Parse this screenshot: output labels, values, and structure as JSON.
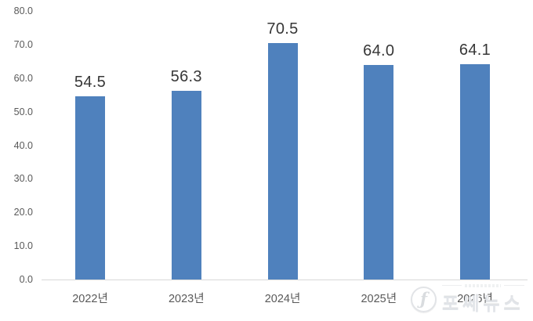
{
  "chart_data": {
    "type": "bar",
    "categories": [
      "2022년",
      "2023년",
      "2024년",
      "2025년",
      "2026년"
    ],
    "values": [
      54.5,
      56.3,
      70.5,
      64.0,
      64.1
    ],
    "value_labels": [
      "54.5",
      "56.3",
      "70.5",
      "64.0",
      "64.1"
    ],
    "title": "",
    "xlabel": "",
    "ylabel": "",
    "ylim": [
      0,
      80
    ],
    "ytick_step": 10,
    "ytick_labels": [
      "0.0",
      "10.0",
      "20.0",
      "30.0",
      "40.0",
      "50.0",
      "60.0",
      "70.0",
      "80.0"
    ],
    "grid": false,
    "legend": false,
    "bar_color": "#4F81BD",
    "value_label_color": "#373737",
    "tick_label_color": "#595959",
    "axis_line_color": "#D9D9D9"
  },
  "watermark": {
    "logo_glyph": "ƒ",
    "text": "포쎄뉴스"
  }
}
